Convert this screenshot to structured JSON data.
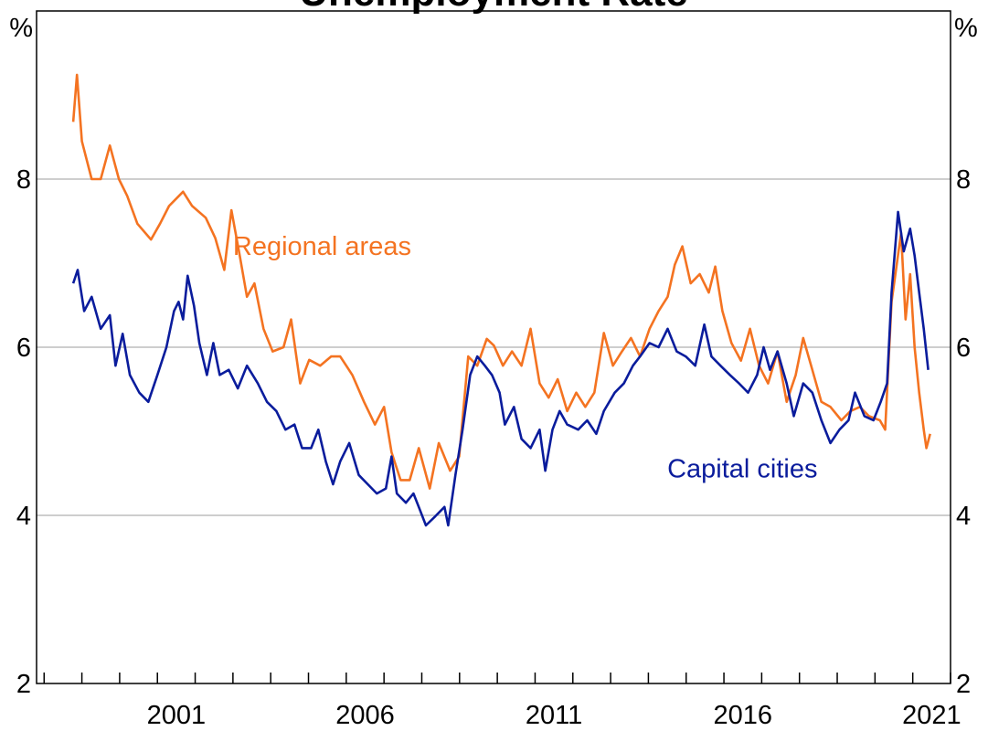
{
  "chart_data": {
    "type": "line",
    "title": "Unemployment Rate",
    "y_unit": "%",
    "xlim": [
      1997.8,
      2022.0
    ],
    "ylim": [
      2,
      10
    ],
    "yticks": [
      2,
      4,
      6,
      8
    ],
    "grid": true,
    "xtick_marks": [
      1998,
      1999,
      2000,
      2001,
      2002,
      2003,
      2004,
      2005,
      2006,
      2007,
      2008,
      2009,
      2010,
      2011,
      2012,
      2013,
      2014,
      2015,
      2016,
      2017,
      2018,
      2019,
      2020,
      2021,
      2022
    ],
    "xtick_labels": [
      {
        "value": 2001.5,
        "label": "2001"
      },
      {
        "value": 2006.5,
        "label": "2006"
      },
      {
        "value": 2011.5,
        "label": "2011"
      },
      {
        "value": 2016.5,
        "label": "2016"
      },
      {
        "value": 2021.5,
        "label": "2021"
      }
    ],
    "series": [
      {
        "name": "Regional areas",
        "color": "#f47321",
        "label_at": [
          2003.0,
          7.1
        ],
        "x": [
          1998.77,
          1998.87,
          1999.0,
          1999.26,
          1999.5,
          1999.74,
          1999.98,
          2000.2,
          2000.47,
          2000.83,
          2001.07,
          2001.31,
          2001.68,
          2001.92,
          2002.28,
          2002.53,
          2002.77,
          2002.96,
          2003.18,
          2003.37,
          2003.57,
          2003.81,
          2004.05,
          2004.34,
          2004.54,
          2004.78,
          2005.02,
          2005.31,
          2005.6,
          2005.84,
          2006.16,
          2006.47,
          2006.76,
          2007.0,
          2007.2,
          2007.44,
          2007.68,
          2007.92,
          2008.21,
          2008.45,
          2008.75,
          2008.99,
          2009.23,
          2009.47,
          2009.72,
          2009.91,
          2010.15,
          2010.39,
          2010.64,
          2010.88,
          2011.12,
          2011.36,
          2011.6,
          2011.85,
          2012.09,
          2012.33,
          2012.57,
          2012.82,
          2013.06,
          2013.3,
          2013.54,
          2013.78,
          2014.03,
          2014.27,
          2014.51,
          2014.7,
          2014.9,
          2015.12,
          2015.36,
          2015.6,
          2015.77,
          2015.96,
          2016.2,
          2016.45,
          2016.69,
          2016.93,
          2017.17,
          2017.42,
          2017.66,
          2017.9,
          2018.1,
          2018.34,
          2018.58,
          2018.82,
          2019.11,
          2019.35,
          2019.6,
          2019.84,
          2020.13,
          2020.27,
          2020.44,
          2020.69,
          2020.81,
          2020.93,
          2021.05,
          2021.17,
          2021.29,
          2021.36,
          2021.46
        ],
        "values": [
          8.68,
          9.24,
          8.45,
          8.0,
          8.0,
          8.4,
          8.0,
          7.8,
          7.47,
          7.28,
          7.47,
          7.68,
          7.85,
          7.68,
          7.54,
          7.3,
          6.92,
          7.63,
          7.09,
          6.6,
          6.76,
          6.22,
          5.95,
          6.0,
          6.33,
          5.57,
          5.85,
          5.78,
          5.89,
          5.89,
          5.67,
          5.35,
          5.08,
          5.29,
          4.75,
          4.42,
          4.42,
          4.8,
          4.32,
          4.86,
          4.53,
          4.7,
          5.89,
          5.78,
          6.1,
          6.02,
          5.78,
          5.95,
          5.78,
          6.22,
          5.57,
          5.4,
          5.62,
          5.24,
          5.46,
          5.29,
          5.46,
          6.17,
          5.78,
          5.95,
          6.11,
          5.89,
          6.22,
          6.43,
          6.6,
          6.98,
          7.2,
          6.76,
          6.87,
          6.65,
          6.96,
          6.43,
          6.05,
          5.84,
          6.22,
          5.78,
          5.57,
          5.95,
          5.35,
          5.67,
          6.11,
          5.73,
          5.35,
          5.29,
          5.13,
          5.24,
          5.29,
          5.18,
          5.13,
          5.02,
          6.54,
          7.36,
          6.33,
          6.87,
          6.0,
          5.46,
          5.02,
          4.8,
          4.97
        ]
      },
      {
        "name": "Capital cities",
        "color": "#0a1c9c",
        "label_at": [
          2014.5,
          4.45
        ],
        "x": [
          1998.77,
          1998.89,
          1999.06,
          1999.26,
          1999.5,
          1999.74,
          1999.89,
          2000.08,
          2000.27,
          2000.52,
          2000.76,
          2001.0,
          2001.24,
          2001.44,
          2001.56,
          2001.68,
          2001.8,
          2001.97,
          2002.11,
          2002.31,
          2002.48,
          2002.65,
          2002.89,
          2003.13,
          2003.37,
          2003.66,
          2003.9,
          2004.15,
          2004.39,
          2004.63,
          2004.83,
          2005.07,
          2005.26,
          2005.46,
          2005.65,
          2005.84,
          2006.08,
          2006.33,
          2006.57,
          2006.81,
          2007.05,
          2007.2,
          2007.34,
          2007.58,
          2007.78,
          2007.92,
          2008.11,
          2008.36,
          2008.6,
          2008.7,
          2008.89,
          2009.08,
          2009.28,
          2009.47,
          2009.67,
          2009.86,
          2010.06,
          2010.2,
          2010.44,
          2010.64,
          2010.88,
          2011.12,
          2011.27,
          2011.46,
          2011.65,
          2011.85,
          2012.14,
          2012.38,
          2012.62,
          2012.82,
          2013.11,
          2013.35,
          2013.59,
          2013.78,
          2014.03,
          2014.27,
          2014.51,
          2014.75,
          2014.99,
          2015.24,
          2015.48,
          2015.67,
          2015.91,
          2016.16,
          2016.4,
          2016.64,
          2016.88,
          2017.05,
          2017.22,
          2017.42,
          2017.66,
          2017.85,
          2018.1,
          2018.34,
          2018.58,
          2018.82,
          2019.06,
          2019.3,
          2019.47,
          2019.72,
          2019.96,
          2020.15,
          2020.32,
          2020.44,
          2020.61,
          2020.76,
          2020.93,
          2021.05,
          2021.17,
          2021.29,
          2021.41
        ],
        "values": [
          6.76,
          6.92,
          6.43,
          6.6,
          6.22,
          6.38,
          5.78,
          6.16,
          5.67,
          5.46,
          5.35,
          5.67,
          6.0,
          6.43,
          6.54,
          6.33,
          6.85,
          6.49,
          6.05,
          5.67,
          6.05,
          5.67,
          5.73,
          5.51,
          5.78,
          5.57,
          5.35,
          5.24,
          5.02,
          5.08,
          4.8,
          4.8,
          5.02,
          4.64,
          4.37,
          4.64,
          4.86,
          4.48,
          4.37,
          4.26,
          4.32,
          4.7,
          4.26,
          4.15,
          4.26,
          4.1,
          3.88,
          3.99,
          4.1,
          3.88,
          4.48,
          5.02,
          5.67,
          5.89,
          5.78,
          5.67,
          5.46,
          5.08,
          5.29,
          4.91,
          4.8,
          5.02,
          4.53,
          5.02,
          5.24,
          5.08,
          5.02,
          5.13,
          4.97,
          5.24,
          5.46,
          5.57,
          5.78,
          5.89,
          6.05,
          6.0,
          6.22,
          5.95,
          5.89,
          5.78,
          6.27,
          5.89,
          5.78,
          5.67,
          5.57,
          5.46,
          5.67,
          6.0,
          5.73,
          5.95,
          5.57,
          5.18,
          5.57,
          5.46,
          5.13,
          4.86,
          5.02,
          5.13,
          5.46,
          5.18,
          5.13,
          5.35,
          5.57,
          6.65,
          7.61,
          7.14,
          7.41,
          7.09,
          6.65,
          6.22,
          5.73
        ]
      }
    ]
  }
}
